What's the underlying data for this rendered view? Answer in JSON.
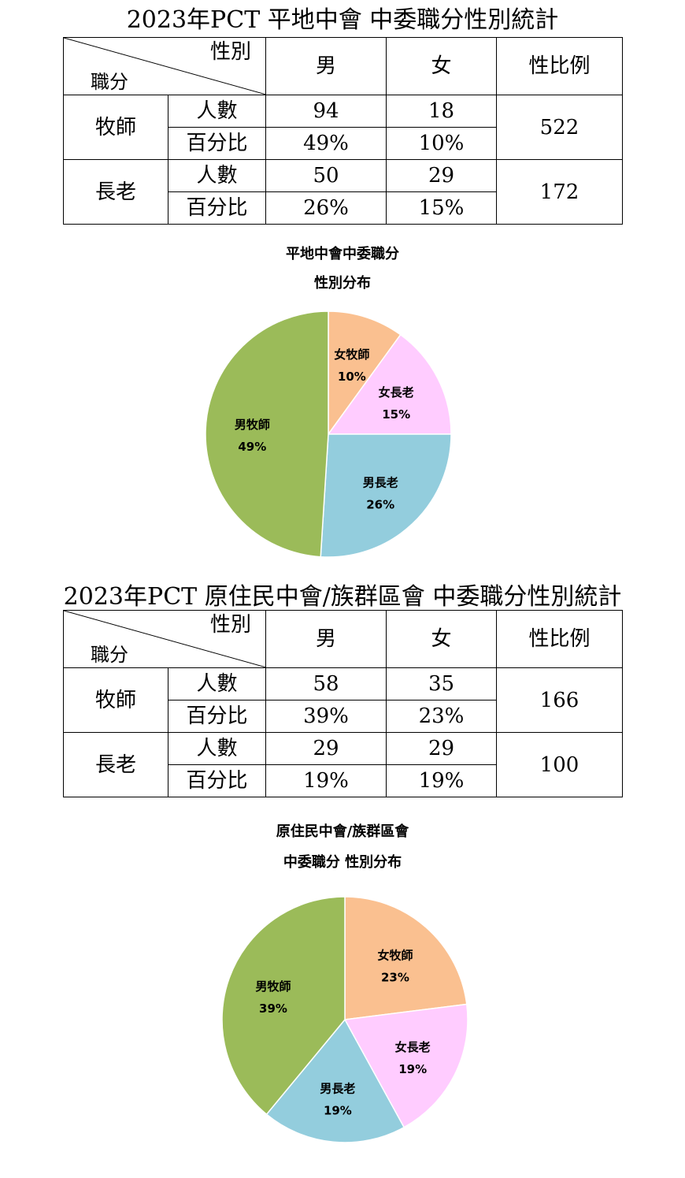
{
  "tables": [
    {
      "title": "2023年PCT 平地中會 中委職分性別統計",
      "corner_gender": "性別",
      "corner_role": "職分",
      "col_male": "男",
      "col_female": "女",
      "col_ratio": "性比例",
      "rows": [
        {
          "role": "牧師",
          "count_label": "人數",
          "pct_label": "百分比",
          "male_count": "94",
          "female_count": "18",
          "male_pct": "49%",
          "female_pct": "10%",
          "ratio": "522"
        },
        {
          "role": "長老",
          "count_label": "人數",
          "pct_label": "百分比",
          "male_count": "50",
          "female_count": "29",
          "male_pct": "26%",
          "female_pct": "15%",
          "ratio": "172"
        }
      ]
    },
    {
      "title": "2023年PCT  原住民中會/族群區會  中委職分性別統計",
      "corner_gender": "性別",
      "corner_role": "職分",
      "col_male": "男",
      "col_female": "女",
      "col_ratio": "性比例",
      "rows": [
        {
          "role": "牧師",
          "count_label": "人數",
          "pct_label": "百分比",
          "male_count": "58",
          "female_count": "35",
          "male_pct": "39%",
          "female_pct": "23%",
          "ratio": "166"
        },
        {
          "role": "長老",
          "count_label": "人數",
          "pct_label": "百分比",
          "male_count": "29",
          "female_count": "29",
          "male_pct": "19%",
          "female_pct": "19%",
          "ratio": "100"
        }
      ]
    }
  ],
  "chart_data": [
    {
      "type": "pie",
      "title": "平地中會中委職分",
      "subtitle": "性別分布",
      "categories": [
        "女牧師",
        "女長老",
        "男長老",
        "男牧師"
      ],
      "values": [
        10,
        15,
        26,
        49
      ],
      "labels": [
        "10%",
        "15%",
        "26%",
        "49%"
      ],
      "colors": [
        "#FAC090",
        "#FFCCFF",
        "#93CDDD",
        "#9BBB59"
      ]
    },
    {
      "type": "pie",
      "title": "原住民中會/族群區會",
      "subtitle": "中委職分 性別分布",
      "categories": [
        "女牧師",
        "女長老",
        "男長老",
        "男牧師"
      ],
      "values": [
        23,
        19,
        19,
        39
      ],
      "labels": [
        "23%",
        "19%",
        "19%",
        "39%"
      ],
      "colors": [
        "#FAC090",
        "#FFCCFF",
        "#93CDDD",
        "#9BBB59"
      ]
    }
  ]
}
